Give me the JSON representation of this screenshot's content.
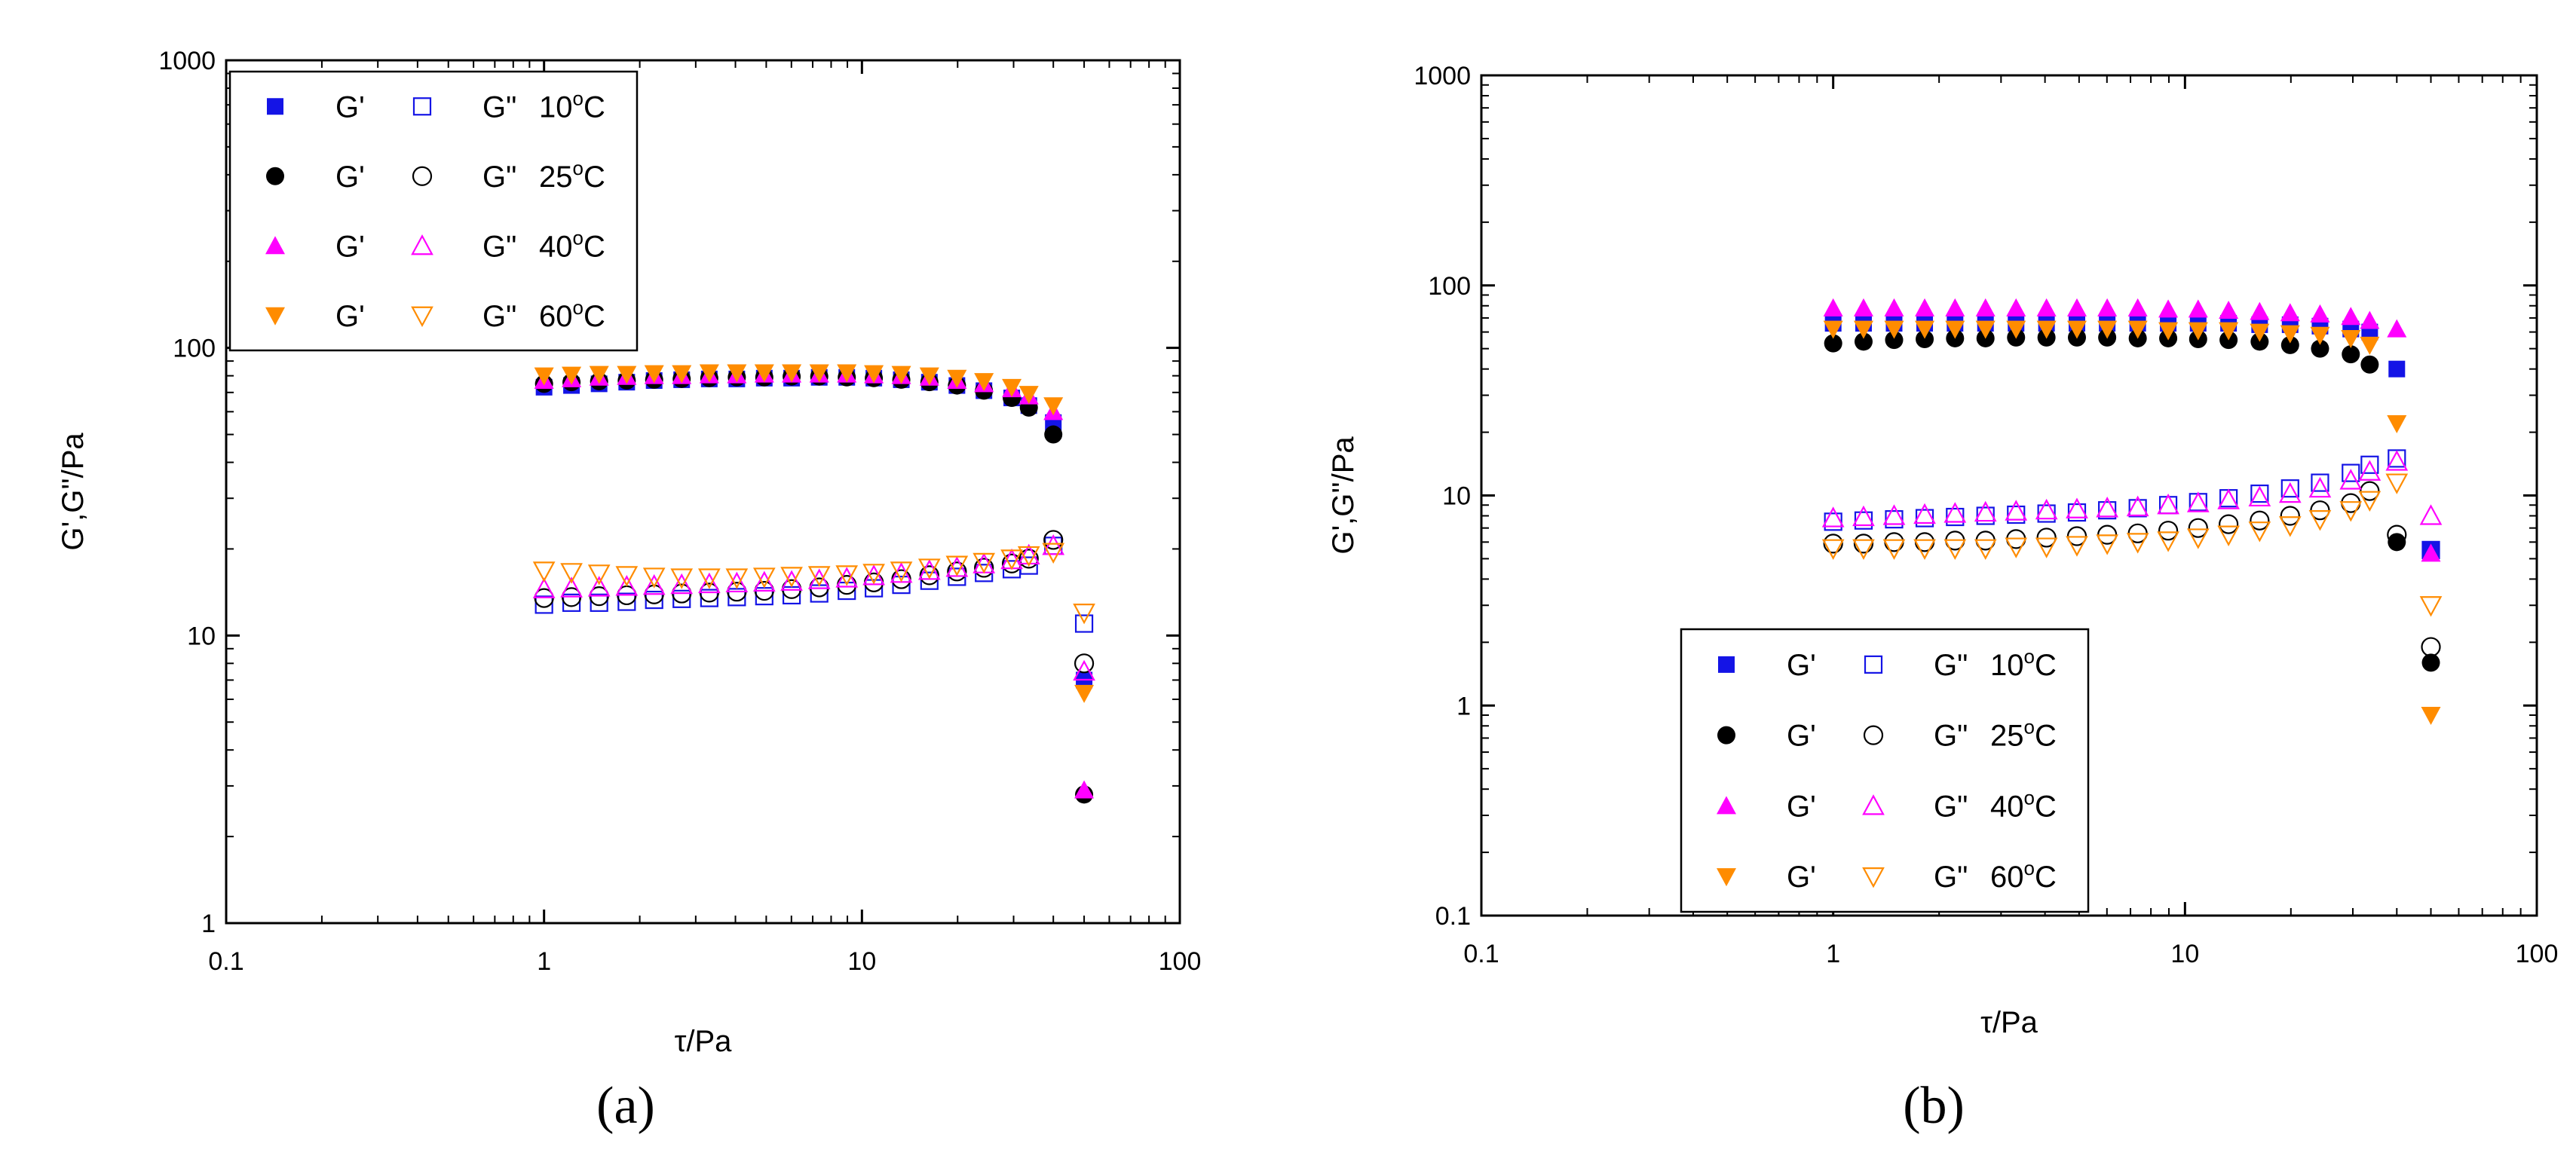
{
  "chart_data": [
    {
      "id": "a",
      "type": "scatter",
      "caption_text": "(a)",
      "xlabel": "τ/Pa",
      "ylabel": "G',G''/Pa",
      "xscale": "log",
      "yscale": "log",
      "xlim": [
        0.1,
        100
      ],
      "ylim": [
        1,
        1000
      ],
      "x_ticks": [
        "0.1",
        "1",
        "10",
        "100"
      ],
      "y_ticks": [
        "1",
        "10",
        "100",
        "1000"
      ],
      "legend_position": "top-left",
      "legend": [
        {
          "g1": "G'",
          "g2": "G\"",
          "temp": "10",
          "unit": "C"
        },
        {
          "g1": "G'",
          "g2": "G\"",
          "temp": "25",
          "unit": "C"
        },
        {
          "g1": "G'",
          "g2": "G\"",
          "temp": "40",
          "unit": "C"
        },
        {
          "g1": "G'",
          "g2": "G\"",
          "temp": "60",
          "unit": "C"
        }
      ],
      "x": [
        1.0,
        1.22,
        1.49,
        1.82,
        2.22,
        2.71,
        3.31,
        4.04,
        4.93,
        6.01,
        7.34,
        8.96,
        10.9,
        13.3,
        16.3,
        19.9,
        24.2,
        29.6,
        33.5,
        40.0,
        50.0
      ],
      "series": [
        {
          "name": "G' 10°C",
          "kind": "Gp",
          "temp": "10",
          "values": [
            73,
            74,
            75,
            76,
            77,
            77.5,
            78,
            78,
            78.5,
            78.5,
            79,
            79,
            78.5,
            77.5,
            76,
            74,
            71,
            67,
            63,
            55,
            7.0
          ]
        },
        {
          "name": "G'' 10°C",
          "kind": "Gpp",
          "temp": "10",
          "values": [
            12.8,
            13.0,
            13.0,
            13.1,
            13.3,
            13.4,
            13.5,
            13.6,
            13.7,
            13.8,
            14.0,
            14.3,
            14.6,
            15.0,
            15.5,
            16.0,
            16.5,
            17.0,
            17.5,
            20.5,
            11.0
          ]
        },
        {
          "name": "G' 25°C",
          "kind": "Gp",
          "temp": "25",
          "values": [
            75,
            76,
            76.5,
            77,
            77.5,
            78,
            78.5,
            79,
            79,
            79.5,
            79.5,
            79,
            78.5,
            77.5,
            76,
            74,
            71,
            67,
            62,
            50,
            2.8
          ]
        },
        {
          "name": "G'' 25°C",
          "kind": "Gpp",
          "temp": "25",
          "values": [
            13.5,
            13.6,
            13.7,
            13.8,
            13.9,
            14.0,
            14.1,
            14.2,
            14.3,
            14.5,
            14.7,
            15.0,
            15.3,
            15.7,
            16.2,
            16.7,
            17.2,
            17.8,
            18.5,
            21.5,
            8.0
          ]
        },
        {
          "name": "G' 40°C",
          "kind": "Gp",
          "temp": "40",
          "values": [
            77,
            78,
            79,
            79.5,
            80,
            80,
            80.5,
            80.5,
            81,
            81,
            81,
            81,
            80.5,
            80,
            79,
            77,
            75,
            72,
            68,
            60,
            2.9
          ]
        },
        {
          "name": "G'' 40°C",
          "kind": "Gpp",
          "temp": "40",
          "values": [
            14.5,
            14.6,
            14.7,
            14.8,
            14.9,
            15.0,
            15.1,
            15.2,
            15.3,
            15.4,
            15.6,
            15.8,
            16.1,
            16.4,
            16.8,
            17.2,
            17.7,
            18.3,
            19.0,
            20.5,
            7.5
          ]
        },
        {
          "name": "G' 60°C",
          "kind": "Gp",
          "temp": "60",
          "values": [
            80,
            80.5,
            81,
            81,
            81.5,
            81.5,
            82,
            82,
            82,
            82,
            82,
            82,
            81.5,
            81,
            80,
            78.5,
            76.5,
            73,
            69,
            63,
            6.3
          ]
        },
        {
          "name": "G'' 60°C",
          "kind": "Gpp",
          "temp": "60",
          "values": [
            16.8,
            16.6,
            16.4,
            16.2,
            16.0,
            15.9,
            15.9,
            15.9,
            16.0,
            16.1,
            16.2,
            16.3,
            16.5,
            16.8,
            17.2,
            17.6,
            18.0,
            18.5,
            19.0,
            19.5,
            12.0
          ]
        }
      ]
    },
    {
      "id": "b",
      "type": "scatter",
      "caption_text": "(b)",
      "xlabel": "τ/Pa",
      "ylabel": "G',G''/Pa",
      "xscale": "log",
      "yscale": "log",
      "xlim": [
        0.1,
        100
      ],
      "ylim": [
        0.1,
        1000
      ],
      "x_ticks": [
        "0.1",
        "1",
        "10",
        "100"
      ],
      "y_ticks": [
        "0.1",
        "1",
        "10",
        "100",
        "1000"
      ],
      "legend_position": "bottom-left",
      "legend": [
        {
          "g1": "G'",
          "g2": "G\"",
          "temp": "10",
          "unit": "C"
        },
        {
          "g1": "G'",
          "g2": "G\"",
          "temp": "25",
          "unit": "C"
        },
        {
          "g1": "G'",
          "g2": "G\"",
          "temp": "40",
          "unit": "C"
        },
        {
          "g1": "G'",
          "g2": "G\"",
          "temp": "60",
          "unit": "C"
        }
      ],
      "x": [
        1.0,
        1.22,
        1.49,
        1.82,
        2.22,
        2.71,
        3.31,
        4.04,
        4.93,
        6.01,
        7.34,
        8.96,
        10.9,
        13.3,
        16.3,
        19.9,
        24.2,
        29.6,
        33.5,
        40.0,
        50.0
      ],
      "series": [
        {
          "name": "G' 10°C",
          "kind": "Gp",
          "temp": "10",
          "values": [
            66,
            66,
            66,
            66,
            66,
            66,
            66,
            66,
            66,
            66,
            66,
            66,
            66,
            66,
            65,
            65,
            64,
            62,
            60,
            40,
            5.5
          ]
        },
        {
          "name": "G'' 10°C",
          "kind": "Gpp",
          "temp": "10",
          "values": [
            7.5,
            7.6,
            7.7,
            7.8,
            7.9,
            8.0,
            8.1,
            8.2,
            8.3,
            8.5,
            8.7,
            9.0,
            9.3,
            9.7,
            10.2,
            10.8,
            11.5,
            12.8,
            14.0,
            15.0,
            5.5
          ]
        },
        {
          "name": "G' 25°C",
          "kind": "Gp",
          "temp": "25",
          "values": [
            53,
            54,
            55,
            55.5,
            56,
            56,
            56.5,
            56.5,
            56.5,
            56.5,
            56,
            56,
            55.5,
            55,
            54,
            52,
            50,
            47,
            42,
            6.0,
            1.6
          ]
        },
        {
          "name": "G'' 25°C",
          "kind": "Gpp",
          "temp": "25",
          "values": [
            5.9,
            5.9,
            6.0,
            6.0,
            6.1,
            6.1,
            6.2,
            6.3,
            6.4,
            6.5,
            6.6,
            6.8,
            7.0,
            7.3,
            7.6,
            8.0,
            8.5,
            9.2,
            10.5,
            6.5,
            1.9
          ]
        },
        {
          "name": "G' 40°C",
          "kind": "Gp",
          "temp": "40",
          "values": [
            78,
            78,
            78,
            78,
            78,
            78,
            78,
            78,
            78,
            78,
            78,
            77,
            77,
            76,
            75,
            74,
            73,
            71,
            68,
            62,
            5.3
          ]
        },
        {
          "name": "G'' 40°C",
          "kind": "Gpp",
          "temp": "40",
          "values": [
            7.8,
            7.9,
            8.0,
            8.1,
            8.2,
            8.3,
            8.4,
            8.5,
            8.6,
            8.7,
            8.8,
            9.0,
            9.2,
            9.5,
            9.8,
            10.2,
            10.8,
            11.8,
            13.0,
            14.5,
            8.0
          ]
        },
        {
          "name": "G' 60°C",
          "kind": "Gp",
          "temp": "60",
          "values": [
            62,
            62,
            62,
            62,
            62,
            62,
            62,
            62,
            62,
            62,
            62,
            61,
            61,
            61,
            60,
            59,
            58,
            56,
            52,
            22,
            0.9
          ]
        },
        {
          "name": "G'' 60°C",
          "kind": "Gpp",
          "temp": "60",
          "values": [
            5.6,
            5.6,
            5.6,
            5.6,
            5.6,
            5.6,
            5.7,
            5.7,
            5.8,
            5.9,
            6.0,
            6.1,
            6.3,
            6.5,
            6.8,
            7.2,
            7.7,
            8.5,
            9.5,
            11.5,
            3.0
          ]
        }
      ]
    }
  ],
  "colors": {
    "10": "#1414e6",
    "25": "#000000",
    "40": "#ff00ff",
    "60": "#ff8c00"
  }
}
